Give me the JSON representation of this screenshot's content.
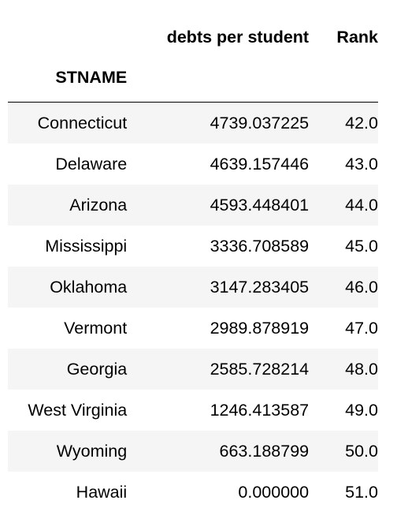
{
  "table": {
    "columns": [
      "debts per student",
      "Rank"
    ],
    "index_name": "STNAME",
    "rows": [
      {
        "name": "Connecticut",
        "debt": "4739.037225",
        "rank": "42.0"
      },
      {
        "name": "Delaware",
        "debt": "4639.157446",
        "rank": "43.0"
      },
      {
        "name": "Arizona",
        "debt": "4593.448401",
        "rank": "44.0"
      },
      {
        "name": "Mississippi",
        "debt": "3336.708589",
        "rank": "45.0"
      },
      {
        "name": "Oklahoma",
        "debt": "3147.283405",
        "rank": "46.0"
      },
      {
        "name": "Vermont",
        "debt": "2989.878919",
        "rank": "47.0"
      },
      {
        "name": "Georgia",
        "debt": "2585.728214",
        "rank": "48.0"
      },
      {
        "name": "West Virginia",
        "debt": "1246.413587",
        "rank": "49.0"
      },
      {
        "name": "Wyoming",
        "debt": "663.188799",
        "rank": "50.0"
      },
      {
        "name": "Hawaii",
        "debt": "0.000000",
        "rank": "51.0"
      }
    ]
  }
}
